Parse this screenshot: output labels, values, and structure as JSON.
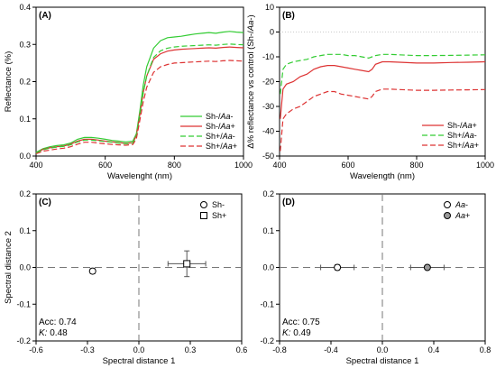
{
  "chart_data": [
    {
      "panel": "(A)",
      "type": "line",
      "xlabel": "Wavelenght (nm)",
      "ylabel": "Reflectance (%)",
      "xlim": [
        400,
        1000
      ],
      "ylim": [
        0,
        0.4
      ],
      "xticks": [
        "400",
        "600",
        "800",
        "1000"
      ],
      "yticks": [
        "0.0",
        "0.1",
        "0.2",
        "0.3",
        "0.4"
      ],
      "legend_position": "right",
      "series": [
        {
          "name": "Sh-/Aa-",
          "legend_parts": [
            "Sh-/",
            "Aa",
            "-"
          ],
          "color": "#33cc33",
          "dash": "none",
          "x": [
            400,
            420,
            440,
            460,
            480,
            500,
            520,
            540,
            560,
            580,
            600,
            620,
            640,
            660,
            680,
            690,
            700,
            710,
            720,
            740,
            760,
            780,
            800,
            820,
            840,
            860,
            880,
            900,
            920,
            940,
            960,
            980,
            1000
          ],
          "y": [
            0.01,
            0.02,
            0.025,
            0.028,
            0.03,
            0.035,
            0.045,
            0.05,
            0.05,
            0.048,
            0.045,
            0.042,
            0.04,
            0.038,
            0.04,
            0.06,
            0.12,
            0.19,
            0.24,
            0.29,
            0.31,
            0.318,
            0.32,
            0.322,
            0.325,
            0.328,
            0.33,
            0.332,
            0.33,
            0.333,
            0.335,
            0.333,
            0.332
          ]
        },
        {
          "name": "Sh-/Aa+",
          "legend_parts": [
            "Sh-/",
            "Aa",
            "+"
          ],
          "color": "#dd3333",
          "dash": "none",
          "x": [
            400,
            420,
            440,
            460,
            480,
            500,
            520,
            540,
            560,
            580,
            600,
            620,
            640,
            660,
            680,
            690,
            700,
            710,
            720,
            740,
            760,
            780,
            800,
            820,
            840,
            860,
            880,
            900,
            920,
            940,
            960,
            980,
            1000
          ],
          "y": [
            0.008,
            0.018,
            0.022,
            0.025,
            0.027,
            0.032,
            0.04,
            0.045,
            0.045,
            0.043,
            0.04,
            0.038,
            0.036,
            0.034,
            0.036,
            0.055,
            0.11,
            0.17,
            0.215,
            0.26,
            0.275,
            0.282,
            0.285,
            0.287,
            0.288,
            0.289,
            0.29,
            0.291,
            0.29,
            0.292,
            0.293,
            0.292,
            0.291
          ]
        },
        {
          "name": "Sh+/Aa-",
          "legend_parts": [
            "Sh+/",
            "Aa",
            "-"
          ],
          "color": "#33cc33",
          "dash": "6,3",
          "x": [
            400,
            420,
            440,
            460,
            480,
            500,
            520,
            540,
            560,
            580,
            600,
            620,
            640,
            660,
            680,
            690,
            700,
            710,
            720,
            740,
            760,
            780,
            800,
            820,
            840,
            860,
            880,
            900,
            920,
            940,
            960,
            980,
            1000
          ],
          "y": [
            0.008,
            0.017,
            0.021,
            0.024,
            0.026,
            0.03,
            0.038,
            0.043,
            0.043,
            0.041,
            0.039,
            0.037,
            0.035,
            0.033,
            0.035,
            0.053,
            0.11,
            0.17,
            0.215,
            0.265,
            0.283,
            0.29,
            0.293,
            0.295,
            0.296,
            0.297,
            0.298,
            0.299,
            0.298,
            0.3,
            0.301,
            0.3,
            0.299
          ]
        },
        {
          "name": "Sh+/Aa+",
          "legend_parts": [
            "Sh+/",
            "Aa",
            "+"
          ],
          "color": "#dd3333",
          "dash": "6,3",
          "x": [
            400,
            420,
            440,
            460,
            480,
            500,
            520,
            540,
            560,
            580,
            600,
            620,
            640,
            660,
            680,
            690,
            700,
            710,
            720,
            740,
            760,
            780,
            800,
            820,
            840,
            860,
            880,
            900,
            920,
            940,
            960,
            980,
            1000
          ],
          "y": [
            0.006,
            0.013,
            0.016,
            0.019,
            0.021,
            0.025,
            0.032,
            0.037,
            0.037,
            0.035,
            0.033,
            0.031,
            0.03,
            0.029,
            0.031,
            0.046,
            0.095,
            0.145,
            0.185,
            0.225,
            0.24,
            0.246,
            0.25,
            0.251,
            0.252,
            0.253,
            0.254,
            0.255,
            0.254,
            0.256,
            0.257,
            0.256,
            0.255
          ]
        }
      ]
    },
    {
      "panel": "(B)",
      "type": "line",
      "xlabel": "Wavelength (nm)",
      "ylabel_parts": [
        "Δ% reflectance vs control (Sh-/",
        "Aa",
        "-)"
      ],
      "xlim": [
        400,
        1000
      ],
      "ylim": [
        -50,
        10
      ],
      "xticks": [
        "400",
        "600",
        "800",
        "1000"
      ],
      "yticks": [
        "-50",
        "-40",
        "-30",
        "-20",
        "-10",
        "0",
        "10"
      ],
      "zero_line": true,
      "legend_position": "bottom-right",
      "series": [
        {
          "name": "Sh-/Aa+",
          "legend_parts": [
            "Sh-/",
            "Aa",
            "+"
          ],
          "color": "#dd3333",
          "dash": "none",
          "x": [
            402,
            410,
            420,
            440,
            460,
            480,
            500,
            520,
            540,
            560,
            580,
            600,
            620,
            640,
            660,
            670,
            680,
            700,
            720,
            750,
            800,
            850,
            900,
            950,
            1000
          ],
          "y": [
            -35,
            -23,
            -21,
            -20,
            -18,
            -17,
            -15,
            -14,
            -13.5,
            -13.5,
            -14,
            -14.5,
            -15,
            -15.5,
            -16,
            -15,
            -13,
            -12,
            -12,
            -12.2,
            -12.5,
            -12.5,
            -12.3,
            -12.2,
            -12
          ]
        },
        {
          "name": "Sh+/Aa-",
          "legend_parts": [
            "Sh+/",
            "Aa",
            "-"
          ],
          "color": "#33cc33",
          "dash": "6,3",
          "x": [
            402,
            410,
            420,
            440,
            460,
            480,
            500,
            520,
            540,
            560,
            580,
            600,
            620,
            640,
            660,
            670,
            680,
            700,
            720,
            750,
            800,
            850,
            900,
            950,
            1000
          ],
          "y": [
            -25,
            -15,
            -13,
            -12,
            -11.5,
            -11,
            -10,
            -9.5,
            -9,
            -9,
            -9,
            -9.5,
            -9.5,
            -10,
            -10.5,
            -10,
            -9.5,
            -9,
            -9,
            -9.2,
            -9.5,
            -9.5,
            -9.4,
            -9.3,
            -9.2
          ]
        },
        {
          "name": "Sh+/Aa+",
          "legend_parts": [
            "Sh+/",
            "Aa",
            "+"
          ],
          "color": "#dd3333",
          "dash": "6,3",
          "x": [
            402,
            410,
            420,
            440,
            460,
            480,
            500,
            520,
            540,
            560,
            580,
            600,
            620,
            640,
            660,
            670,
            680,
            700,
            720,
            750,
            800,
            850,
            900,
            950,
            1000
          ],
          "y": [
            -48,
            -35,
            -33,
            -31,
            -30,
            -28,
            -26,
            -25,
            -24,
            -24,
            -25,
            -25.5,
            -26,
            -26.5,
            -27,
            -26,
            -24,
            -23,
            -23,
            -23.2,
            -23.5,
            -23.5,
            -23.4,
            -23.3,
            -23.2
          ]
        }
      ]
    },
    {
      "panel": "(C)",
      "type": "scatter",
      "xlabel": "Spectral distance 1",
      "ylabel": "Spectral distance 2",
      "xlim": [
        -0.6,
        0.6
      ],
      "ylim": [
        -0.2,
        0.2
      ],
      "xticks": [
        "-0.6",
        "-0.3",
        "0.0",
        "0.3",
        "0.6"
      ],
      "yticks": [
        "-0.2",
        "-0.1",
        "0.0",
        "0.1",
        "0.2"
      ],
      "legend_position": "top-right",
      "points": [
        {
          "name": "Sh-",
          "marker": "circle",
          "fill": "#ffffff",
          "x": -0.27,
          "y": -0.01,
          "xerr": 0.01,
          "yerr": 0.007
        },
        {
          "name": "Sh+",
          "marker": "square",
          "fill": "#ffffff",
          "x": 0.28,
          "y": 0.01,
          "xerr": 0.11,
          "yerr": 0.035
        }
      ],
      "annotations": [
        {
          "label": "Acc:",
          "value": "0.74"
        },
        {
          "label": "K:",
          "value": "0.48"
        }
      ]
    },
    {
      "panel": "(D)",
      "type": "scatter",
      "xlabel": "Spectral distance 1",
      "ylabel": "",
      "xlim": [
        -0.8,
        0.8
      ],
      "ylim": [
        -0.2,
        0.2
      ],
      "xticks": [
        "-0.8",
        "-0.4",
        "0.0",
        "0.4",
        "0.8"
      ],
      "yticks": [
        "-0.2",
        "-0.1",
        "0.0",
        "0.1",
        "0.2"
      ],
      "legend_position": "top-right",
      "points": [
        {
          "name": "Aa-",
          "marker": "circle",
          "fill": "#ffffff",
          "x": -0.35,
          "y": 0.0,
          "xerr": 0.13,
          "yerr": 0.007
        },
        {
          "name": "Aa+",
          "marker": "circle",
          "fill": "#999999",
          "x": 0.35,
          "y": 0.0,
          "xerr": 0.13,
          "yerr": 0.004
        }
      ],
      "annotations": [
        {
          "label": "Acc:",
          "value": "0.75"
        },
        {
          "label": "K:",
          "value": "0.49"
        }
      ]
    }
  ]
}
